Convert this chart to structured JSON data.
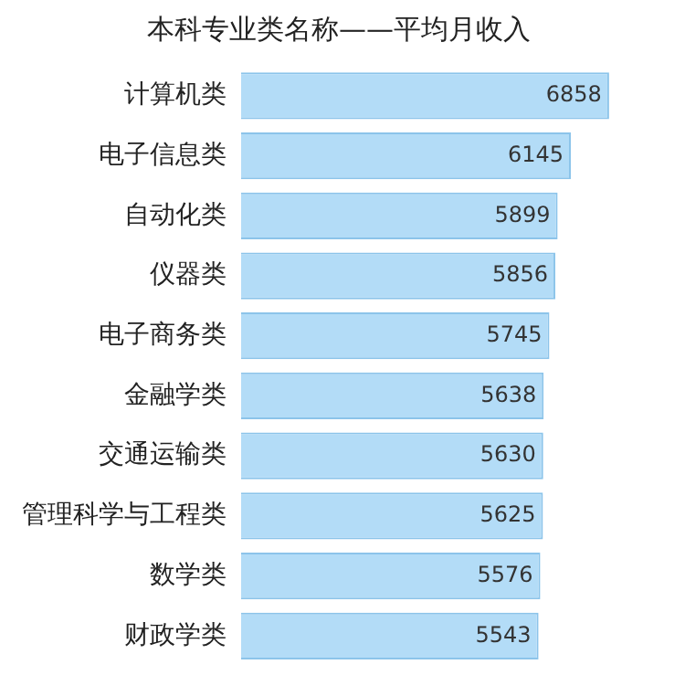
{
  "chart_data": {
    "type": "bar",
    "orientation": "horizontal",
    "title": "本科专业类名称——平均月收入",
    "categories": [
      "计算机类",
      "电子信息类",
      "自动化类",
      "仪器类",
      "电子商务类",
      "金融学类",
      "交通运输类",
      "管理科学与工程类",
      "数学类",
      "财政学类"
    ],
    "values": [
      6858,
      6145,
      5899,
      5856,
      5745,
      5638,
      5630,
      5625,
      5576,
      5543
    ],
    "color": "#b3dcf7",
    "data_labels": true,
    "grid": false,
    "legend": false,
    "tick_labels": "y"
  }
}
